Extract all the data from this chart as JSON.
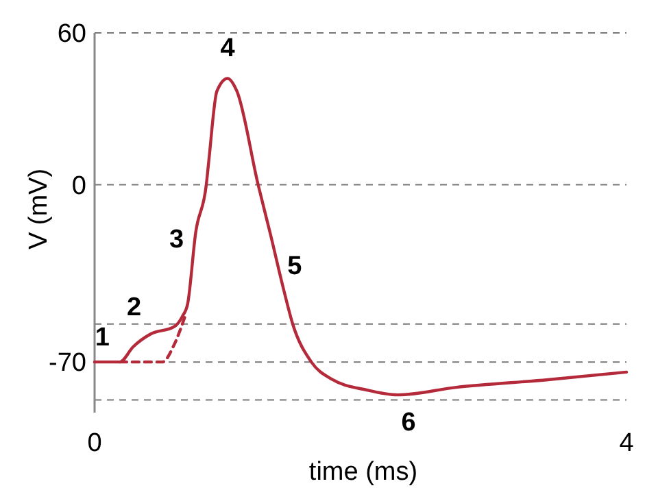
{
  "chart_data": {
    "type": "line",
    "xlabel": "time (ms)",
    "ylabel": "V (mV)",
    "xlim": [
      0,
      4
    ],
    "xticks": [
      0,
      4
    ],
    "ylim": [
      -90,
      60
    ],
    "yticks": [
      60,
      0,
      {
        "value": -55,
        "label": null
      },
      -70,
      {
        "value": -85,
        "label": null
      }
    ],
    "grid": "y",
    "line_style": "solid",
    "series": [
      {
        "color": "#b52a3a",
        "x": [
          0,
          0.19,
          0.29,
          0.42,
          0.6,
          0.66,
          0.7,
          0.76,
          0.84,
          0.86,
          0.92,
          1.0,
          1.07,
          1.23,
          1.32,
          1.42,
          1.49,
          1.63,
          1.79,
          2.04,
          2.28,
          2.72,
          3.41,
          4.0
        ],
        "values": [
          -70,
          -70,
          -64,
          -59,
          -56,
          -52,
          -47,
          -19,
          0,
          10,
          37,
          42,
          37,
          0,
          -19,
          -41,
          -55,
          -70,
          -77,
          -81,
          -83,
          -80,
          -77,
          -74
        ]
      },
      {
        "color": "#b52a3a",
        "line_style": "dashed",
        "x": [
          0.19,
          0.51,
          0.6,
          0.68
        ],
        "values": [
          -70,
          -70,
          -63,
          -52
        ]
      }
    ],
    "annotations": [
      {
        "text": "1",
        "x": 0.1,
        "y": -70
      },
      {
        "text": "2",
        "x": 0.4,
        "y": -59
      },
      {
        "text": "3",
        "x": 0.74,
        "y": -28
      },
      {
        "text": "4",
        "x": 1.0,
        "y": 42
      },
      {
        "text": "5",
        "x": 1.36,
        "y": -30
      },
      {
        "text": "6",
        "x": 2.3,
        "y": -83
      }
    ]
  }
}
